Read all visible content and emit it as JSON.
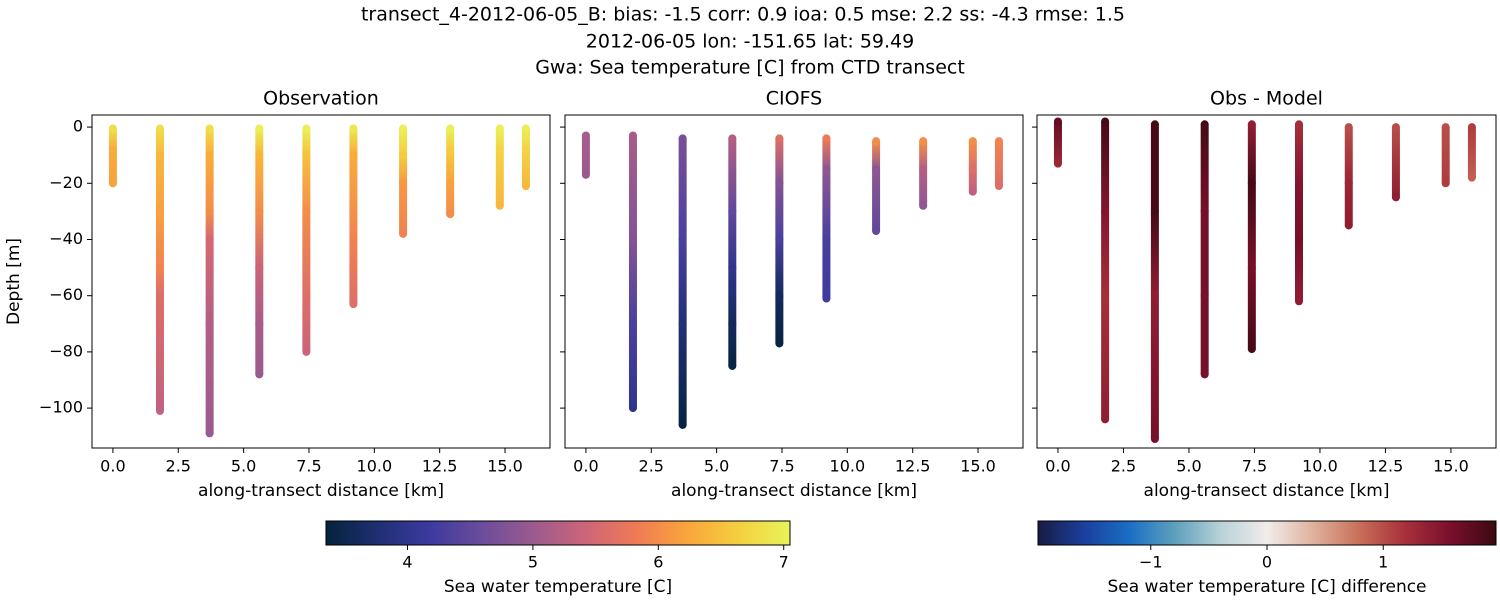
{
  "title": [
    "transect_4-2012-06-05_B: bias: -1.5  corr: 0.9  ioa: 0.5  mse: 2.2  ss: -4.3  rmse: 1.5",
    "2012-06-05 lon: -151.65 lat: 59.49",
    "Gwa: Sea temperature [C] from CTD transect"
  ],
  "colorbars": [
    {
      "label": "Sea water temperature [C]",
      "clim": [
        3.35,
        7.05
      ],
      "ticks": [
        4,
        5,
        6,
        7
      ],
      "colormap": "thermal"
    },
    {
      "label": "Sea water temperature [C] difference",
      "clim": [
        -1.97,
        1.97
      ],
      "ticks": [
        {
          "value": -1,
          "label": "−1"
        },
        0,
        1
      ],
      "colormap": "balance"
    }
  ],
  "chart_data": [
    {
      "type": "scatter",
      "title": "Observation",
      "xlabel": "along-transect distance [km]",
      "ylabel": "Depth [m]",
      "colorbar": 0,
      "xlim": [
        -0.8,
        16.72
      ],
      "ylim": [
        -114.2,
        4.3
      ],
      "xticks": [
        {
          "value": 0,
          "label": "0.0"
        },
        2.5,
        {
          "value": 5,
          "label": "5.0"
        },
        7.5,
        {
          "value": 10,
          "label": "10.0"
        },
        12.5,
        {
          "value": 15,
          "label": "15.0"
        }
      ],
      "yticks": [
        {
          "value": -100,
          "label": "−100"
        },
        {
          "value": -80,
          "label": "−80"
        },
        {
          "value": -60,
          "label": "−60"
        },
        {
          "value": -40,
          "label": "−40"
        },
        {
          "value": -20,
          "label": "−20"
        },
        0
      ],
      "yticklabels": true,
      "casts": [
        {
          "x": 0,
          "depth": [
            -0.5,
            -8,
            -20
          ],
          "values": [
            6.8,
            6.3,
            6.2
          ]
        },
        {
          "x": 1.8,
          "depth": [
            -0.5,
            -10,
            -30,
            -50,
            -60,
            -101
          ],
          "values": [
            6.8,
            6.4,
            6.2,
            5.9,
            5.6,
            5.3
          ]
        },
        {
          "x": 3.7,
          "depth": [
            -0.5,
            -10,
            -30,
            -40,
            -70,
            -109
          ],
          "values": [
            6.8,
            6.3,
            6.0,
            5.5,
            5.2,
            5.0
          ]
        },
        {
          "x": 5.6,
          "depth": [
            -0.5,
            -10,
            -30,
            -50,
            -70,
            -88
          ],
          "values": [
            7.0,
            6.4,
            6.0,
            5.4,
            5.1,
            5.0
          ]
        },
        {
          "x": 7.4,
          "depth": [
            -0.5,
            -10,
            -30,
            -60,
            -80
          ],
          "values": [
            7.0,
            6.5,
            6.0,
            5.6,
            5.4
          ]
        },
        {
          "x": 9.2,
          "depth": [
            -0.5,
            -10,
            -40,
            -63
          ],
          "values": [
            6.9,
            6.3,
            5.9,
            5.6
          ]
        },
        {
          "x": 11.1,
          "depth": [
            -0.5,
            -10,
            -20,
            -38
          ],
          "values": [
            7.0,
            6.6,
            6.1,
            5.9
          ]
        },
        {
          "x": 12.9,
          "depth": [
            -0.5,
            -8,
            -20,
            -31
          ],
          "values": [
            7.0,
            6.6,
            6.2,
            6.0
          ]
        },
        {
          "x": 14.8,
          "depth": [
            -0.5,
            -8,
            -28
          ],
          "values": [
            7.0,
            6.7,
            6.4
          ]
        },
        {
          "x": 15.8,
          "depth": [
            -0.5,
            -8,
            -21
          ],
          "values": [
            7.0,
            6.7,
            6.4
          ]
        }
      ]
    },
    {
      "type": "scatter",
      "title": "CIOFS",
      "xlabel": "along-transect distance [km]",
      "colorbar": 0,
      "xlim": [
        -0.8,
        16.72
      ],
      "ylim": [
        -114.2,
        4.3
      ],
      "xticks": [
        {
          "value": 0,
          "label": "0.0"
        },
        2.5,
        {
          "value": 5,
          "label": "5.0"
        },
        7.5,
        {
          "value": 10,
          "label": "10.0"
        },
        12.5,
        {
          "value": 15,
          "label": "15.0"
        }
      ],
      "yticks": [
        -100,
        -80,
        -60,
        -40,
        -20,
        0
      ],
      "yticklabels": false,
      "casts": [
        {
          "x": 0,
          "depth": [
            -3,
            -17
          ],
          "values": [
            5.1,
            5.0
          ]
        },
        {
          "x": 1.8,
          "depth": [
            -3,
            -40,
            -70,
            -100
          ],
          "values": [
            5.1,
            4.8,
            4.3,
            4.0
          ]
        },
        {
          "x": 3.7,
          "depth": [
            -4,
            -40,
            -70,
            -106
          ],
          "values": [
            4.7,
            4.3,
            3.8,
            3.4
          ]
        },
        {
          "x": 5.6,
          "depth": [
            -4,
            -30,
            -50,
            -70,
            -85
          ],
          "values": [
            5.2,
            4.5,
            4.0,
            3.6,
            3.4
          ]
        },
        {
          "x": 7.4,
          "depth": [
            -4,
            -20,
            -40,
            -60,
            -77
          ],
          "values": [
            5.6,
            4.8,
            4.3,
            3.6,
            3.4
          ]
        },
        {
          "x": 9.2,
          "depth": [
            -4,
            -15,
            -40,
            -61
          ],
          "values": [
            5.8,
            4.9,
            4.3,
            4.2
          ]
        },
        {
          "x": 11.1,
          "depth": [
            -5,
            -15,
            -37
          ],
          "values": [
            6.0,
            4.9,
            4.5
          ]
        },
        {
          "x": 12.9,
          "depth": [
            -5,
            -15,
            -28
          ],
          "values": [
            6.0,
            5.2,
            4.9
          ]
        },
        {
          "x": 14.8,
          "depth": [
            -5,
            -15,
            -23
          ],
          "values": [
            6.0,
            5.6,
            5.3
          ]
        },
        {
          "x": 15.8,
          "depth": [
            -5,
            -21
          ],
          "values": [
            5.9,
            5.6
          ]
        }
      ]
    },
    {
      "type": "scatter",
      "title": "Obs - Model",
      "xlabel": "along-transect distance [km]",
      "colorbar": 1,
      "xlim": [
        -0.8,
        16.72
      ],
      "ylim": [
        -114.2,
        4.3
      ],
      "xticks": [
        {
          "value": 0,
          "label": "0.0"
        },
        2.5,
        {
          "value": 5,
          "label": "5.0"
        },
        7.5,
        {
          "value": 10,
          "label": "10.0"
        },
        12.5,
        {
          "value": 15,
          "label": "15.0"
        }
      ],
      "yticks": [
        -100,
        -80,
        -60,
        -40,
        -20,
        0
      ],
      "yticklabels": false,
      "casts": [
        {
          "x": 0,
          "depth": [
            2,
            -13
          ],
          "values": [
            1.7,
            1.3
          ]
        },
        {
          "x": 1.8,
          "depth": [
            2,
            -30,
            -60,
            -104
          ],
          "values": [
            1.9,
            1.5,
            1.2,
            1.4
          ]
        },
        {
          "x": 3.7,
          "depth": [
            1,
            -30,
            -60,
            -111
          ],
          "values": [
            1.9,
            1.9,
            1.4,
            1.6
          ]
        },
        {
          "x": 5.6,
          "depth": [
            1,
            -30,
            -60,
            -88
          ],
          "values": [
            1.9,
            1.6,
            1.6,
            1.6
          ]
        },
        {
          "x": 7.4,
          "depth": [
            1,
            -20,
            -50,
            -79
          ],
          "values": [
            1.4,
            1.9,
            1.6,
            1.9
          ]
        },
        {
          "x": 9.2,
          "depth": [
            1,
            -20,
            -40,
            -62
          ],
          "values": [
            1.2,
            1.5,
            1.6,
            1.4
          ]
        },
        {
          "x": 11.1,
          "depth": [
            0,
            -20,
            -35
          ],
          "values": [
            1.0,
            1.3,
            1.4
          ]
        },
        {
          "x": 12.9,
          "depth": [
            0,
            -25
          ],
          "values": [
            1.0,
            1.4
          ]
        },
        {
          "x": 14.8,
          "depth": [
            0,
            -20
          ],
          "values": [
            1.0,
            1.1
          ]
        },
        {
          "x": 15.8,
          "depth": [
            0,
            -18
          ],
          "values": [
            1.1,
            0.9
          ]
        }
      ]
    }
  ]
}
